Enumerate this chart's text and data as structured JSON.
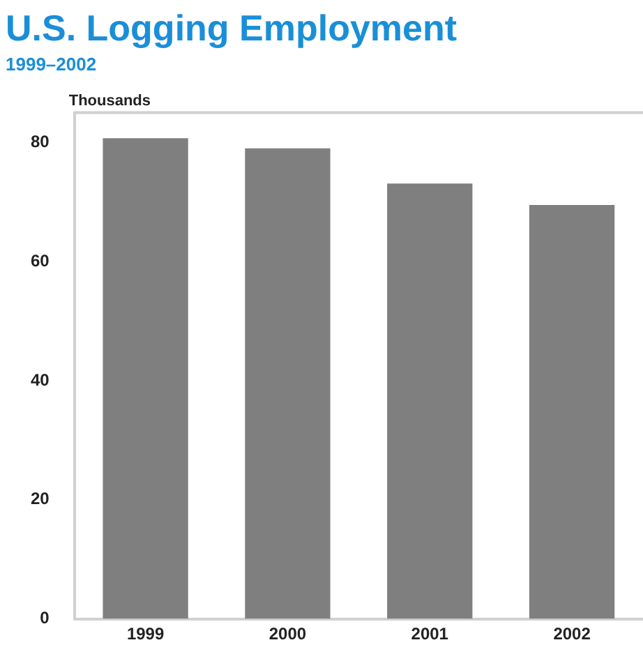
{
  "chart_data": {
    "type": "bar",
    "title": "U.S. Logging Employment",
    "subtitle": "1999–2002",
    "ylabel": "Thousands",
    "categories": [
      "1999",
      "2000",
      "2001",
      "2002"
    ],
    "values": [
      80.7,
      79.0,
      73.1,
      69.5
    ],
    "color": "#7f7f7f",
    "ylim": [
      0,
      85
    ],
    "yticks": [
      0,
      20,
      40,
      60,
      80
    ],
    "grid": false,
    "legend": false
  }
}
